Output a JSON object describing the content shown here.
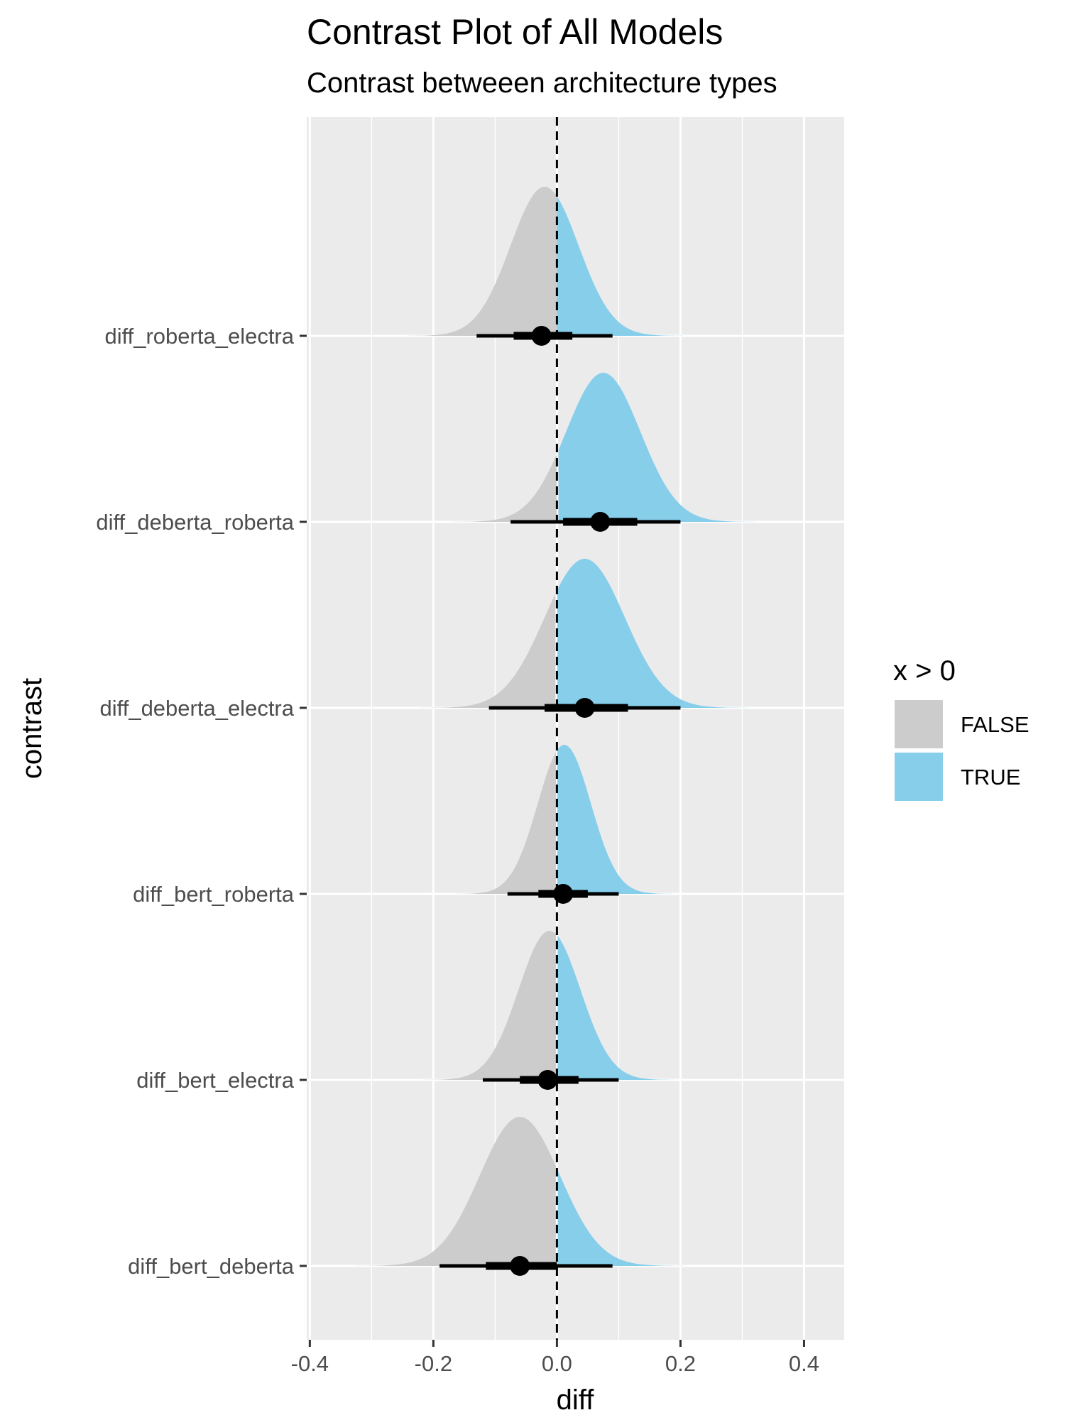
{
  "chart_data": {
    "type": "halfeye",
    "title": "Contrast Plot of All Models",
    "subtitle": "Contrast betweeen architecture types",
    "xlabel": "diff",
    "ylabel": "contrast",
    "xlim": [
      -0.405,
      0.465
    ],
    "x_ticks": [
      "-0.4",
      "-0.2",
      "0.0",
      "0.2",
      "0.4"
    ],
    "x_tick_values": [
      -0.4,
      -0.2,
      0.0,
      0.2,
      0.4
    ],
    "reference_line": 0,
    "grid": true,
    "legend": {
      "title": "x > 0",
      "position": "right",
      "items": [
        {
          "label": "FALSE",
          "color": "#cccccc"
        },
        {
          "label": "TRUE",
          "color": "#87ceeb"
        }
      ]
    },
    "categories": [
      "diff_roberta_electra",
      "diff_deberta_roberta",
      "diff_deberta_electra",
      "diff_bert_roberta",
      "diff_bert_electra",
      "diff_bert_deberta"
    ],
    "series": [
      {
        "category": "diff_roberta_electra",
        "median": -0.025,
        "ci66": [
          -0.07,
          0.025
        ],
        "ci95": [
          -0.13,
          0.09
        ],
        "dist_mean": -0.02,
        "dist_sd": 0.055
      },
      {
        "category": "diff_deberta_roberta",
        "median": 0.07,
        "ci66": [
          0.01,
          0.13
        ],
        "ci95": [
          -0.075,
          0.2
        ],
        "dist_mean": 0.075,
        "dist_sd": 0.06
      },
      {
        "category": "diff_deberta_electra",
        "median": 0.045,
        "ci66": [
          -0.02,
          0.115
        ],
        "ci95": [
          -0.11,
          0.2
        ],
        "dist_mean": 0.045,
        "dist_sd": 0.065
      },
      {
        "category": "diff_bert_roberta",
        "median": 0.01,
        "ci66": [
          -0.03,
          0.05
        ],
        "ci95": [
          -0.08,
          0.1
        ],
        "dist_mean": 0.012,
        "dist_sd": 0.043
      },
      {
        "category": "diff_bert_electra",
        "median": -0.015,
        "ci66": [
          -0.06,
          0.035
        ],
        "ci95": [
          -0.12,
          0.1
        ],
        "dist_mean": -0.012,
        "dist_sd": 0.05
      },
      {
        "category": "diff_bert_deberta",
        "median": -0.06,
        "ci66": [
          -0.115,
          0.0
        ],
        "ci95": [
          -0.19,
          0.09
        ],
        "dist_mean": -0.06,
        "dist_sd": 0.065
      }
    ]
  }
}
